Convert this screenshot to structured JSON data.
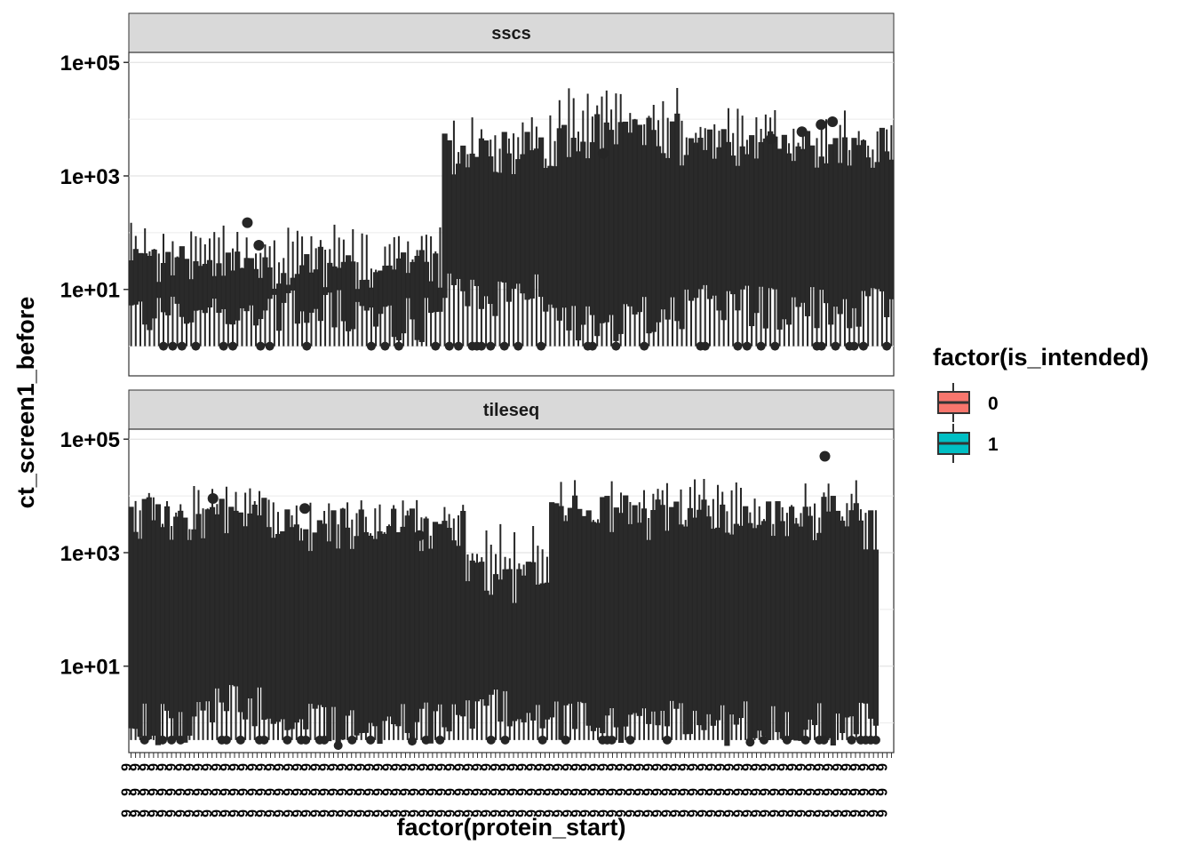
{
  "chart_data": {
    "type": "boxplot",
    "title": "",
    "xlabel": "factor(protein_start)",
    "ylabel": "ct_screen1_before",
    "y_scale": "log10",
    "ylim": [
      0.3,
      150000
    ],
    "y_ticks": [
      {
        "value": 10,
        "label": "1e+01"
      },
      {
        "value": 1000,
        "label": "1e+03"
      },
      {
        "value": 100000,
        "label": "1e+05"
      }
    ],
    "grid": true,
    "legend": {
      "title": "factor(is_intended)",
      "position": "right",
      "entries": [
        {
          "label": "0",
          "color": "#F8766D"
        },
        {
          "label": "1",
          "color": "#00BFC4"
        }
      ]
    },
    "x_tick_labels": [
      "9"
    ],
    "facets": [
      {
        "label": "sscs",
        "segments": [
          {
            "from": 0.0,
            "to": 0.29,
            "q1": 4,
            "median": 12,
            "q3": 25,
            "whisker_low": 1,
            "whisker_high": 60
          },
          {
            "from": 0.29,
            "to": 0.41,
            "q1": 3,
            "median": 10,
            "q3": 20,
            "whisker_low": 1,
            "whisker_high": 50
          },
          {
            "from": 0.41,
            "to": 0.56,
            "q1": 8,
            "median": 300,
            "q3": 2500,
            "whisker_low": 1,
            "whisker_high": 5000
          },
          {
            "from": 0.56,
            "to": 0.72,
            "q1": 3,
            "median": 100,
            "q3": 5000,
            "whisker_low": 1,
            "whisker_high": 15000
          },
          {
            "from": 0.72,
            "to": 1.0,
            "q1": 5,
            "median": 200,
            "q3": 3000,
            "whisker_low": 1,
            "whisker_high": 7000
          }
        ],
        "outliers": [
          {
            "x": 0.155,
            "y": 150
          },
          {
            "x": 0.17,
            "y": 60
          },
          {
            "x": 0.62,
            "y": 2500
          },
          {
            "x": 0.84,
            "y": 4500
          },
          {
            "x": 0.88,
            "y": 6000
          },
          {
            "x": 0.905,
            "y": 8000
          },
          {
            "x": 0.92,
            "y": 9000
          }
        ]
      },
      {
        "label": "tileseq",
        "segments": [
          {
            "from": 0.0,
            "to": 0.1,
            "q1": 1,
            "median": 800,
            "q3": 4000,
            "whisker_low": 0.5,
            "whisker_high": 6000
          },
          {
            "from": 0.1,
            "to": 0.18,
            "q1": 2,
            "median": 1200,
            "q3": 5000,
            "whisker_low": 0.5,
            "whisker_high": 9000
          },
          {
            "from": 0.18,
            "to": 0.44,
            "q1": 1,
            "median": 400,
            "q3": 2500,
            "whisker_low": 0.5,
            "whisker_high": 4000
          },
          {
            "from": 0.44,
            "to": 0.55,
            "q1": 2,
            "median": 30,
            "q3": 300,
            "whisker_low": 0.5,
            "whisker_high": 1500
          },
          {
            "from": 0.55,
            "to": 0.96,
            "q1": 1,
            "median": 800,
            "q3": 4000,
            "whisker_low": 0.5,
            "whisker_high": 8000
          },
          {
            "from": 0.96,
            "to": 0.98,
            "q1": 1,
            "median": 400,
            "q3": 2500,
            "whisker_low": 0.5,
            "whisker_high": 3500
          }
        ],
        "outliers": [
          {
            "x": 0.91,
            "y": 50000
          },
          {
            "x": 0.11,
            "y": 9000
          },
          {
            "x": 0.23,
            "y": 6000
          },
          {
            "x": 0.38,
            "y": 2000
          }
        ]
      }
    ]
  }
}
